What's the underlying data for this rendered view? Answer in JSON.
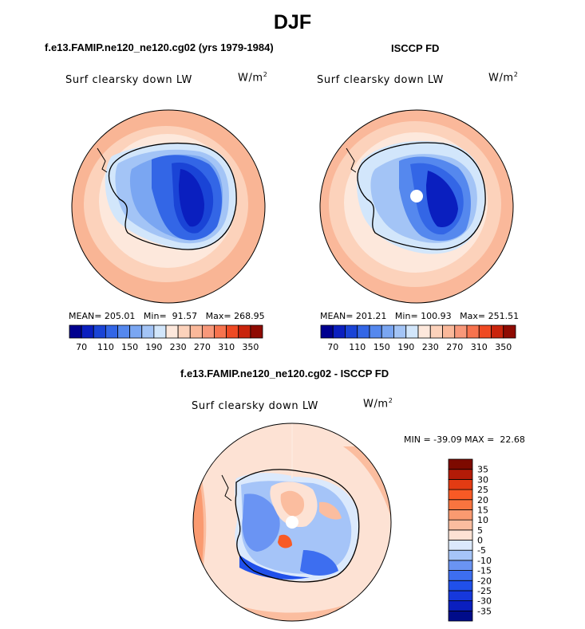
{
  "title": "DJF",
  "panels": [
    {
      "id": "model",
      "title": "f.e13.FAMIP.ne120_ne120.cg02 (yrs 1979-1984)",
      "variable": "Surf clearsky down LW",
      "units_base": "W/m",
      "units_exp": "2",
      "mean_label": "MEAN=",
      "mean": "205.01",
      "min_label": "Min=",
      "min": "91.57",
      "max_label": "Max=",
      "max": "268.95"
    },
    {
      "id": "obs",
      "title": "ISCCP FD",
      "variable": "Surf clearsky down LW",
      "units_base": "W/m",
      "units_exp": "2",
      "mean_label": "MEAN=",
      "mean": "201.21",
      "min_label": "Min=",
      "min": "100.93",
      "max_label": "Max=",
      "max": "251.51"
    }
  ],
  "diff": {
    "title": "f.e13.FAMIP.ne120_ne120.cg02 - ISCCP FD",
    "variable": "Surf clearsky down LW",
    "units_base": "W/m",
    "units_exp": "2",
    "stats": "MIN = -39.09 MAX =  22.68"
  },
  "abs_colorbar": {
    "colors": [
      "#00008f",
      "#0a1fbf",
      "#1a44d6",
      "#3366e6",
      "#5588ee",
      "#7aa6f2",
      "#a3c4f6",
      "#d2e6fb",
      "#fde8dc",
      "#fcd2bb",
      "#fab89a",
      "#f8987a",
      "#f7734e",
      "#ef4a23",
      "#c9240c",
      "#8f0b02"
    ],
    "labels": [
      "70",
      "110",
      "150",
      "190",
      "230",
      "270",
      "310",
      "350"
    ]
  },
  "diff_colorbar": {
    "colors": [
      "#000c8a",
      "#0a1fbf",
      "#1638dc",
      "#2050ea",
      "#3d6ef0",
      "#6a94f3",
      "#a5c4f8",
      "#dbe9fc",
      "#fde2d4",
      "#fbbd9f",
      "#fa9a70",
      "#f9743f",
      "#f85a25",
      "#e33b13",
      "#b31b07",
      "#7d0a00"
    ],
    "labels": [
      "35",
      "30",
      "25",
      "20",
      "15",
      "10",
      "5",
      "0",
      "-5",
      "-10",
      "-15",
      "-20",
      "-25",
      "-30",
      "-35"
    ]
  }
}
